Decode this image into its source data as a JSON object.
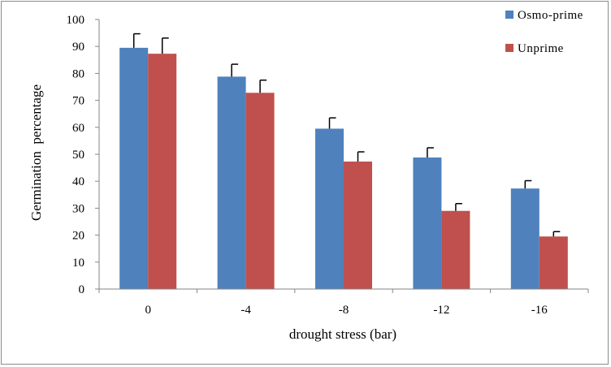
{
  "chart_data": {
    "type": "bar",
    "categories": [
      "0",
      "-4",
      "-8",
      "-12",
      "-16"
    ],
    "series": [
      {
        "name": "Osmo-prime",
        "color": "#4f81bd",
        "values": [
          89.5,
          78.8,
          59.5,
          48.8,
          37.3
        ],
        "errors": [
          5.2,
          4.6,
          4.0,
          3.6,
          2.9
        ]
      },
      {
        "name": "Unprime",
        "color": "#c0504d",
        "values": [
          87.3,
          72.8,
          47.3,
          29.0,
          19.5
        ],
        "errors": [
          5.8,
          4.7,
          3.6,
          2.7,
          1.8
        ]
      }
    ],
    "xlabel": "drought stress (bar)",
    "ylabel": "Germination  percentage",
    "ylim": [
      0,
      100
    ],
    "yticks": [
      0,
      10,
      20,
      30,
      40,
      50,
      60,
      70,
      80,
      90,
      100
    ],
    "grid": false,
    "legend_position": "top-right"
  }
}
